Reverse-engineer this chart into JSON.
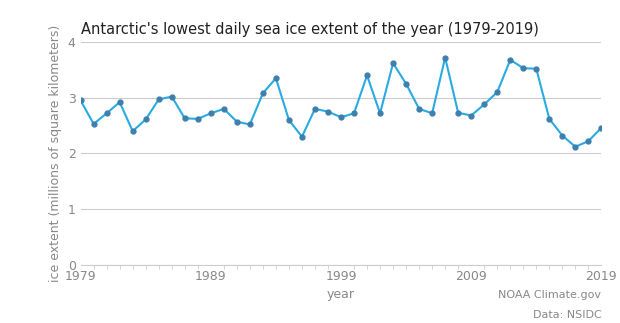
{
  "title": "Antarctic's lowest daily sea ice extent of the year (1979-2019)",
  "xlabel": "year",
  "ylabel": "ice extent (millions of square kilometers)",
  "years": [
    1979,
    1980,
    1981,
    1982,
    1983,
    1984,
    1985,
    1986,
    1987,
    1988,
    1989,
    1990,
    1991,
    1992,
    1993,
    1994,
    1995,
    1996,
    1997,
    1998,
    1999,
    2000,
    2001,
    2002,
    2003,
    2004,
    2005,
    2006,
    2007,
    2008,
    2009,
    2010,
    2011,
    2012,
    2013,
    2014,
    2015,
    2016,
    2017,
    2018,
    2019
  ],
  "values": [
    2.95,
    2.53,
    2.72,
    2.92,
    2.4,
    2.61,
    2.97,
    3.02,
    2.63,
    2.62,
    2.72,
    2.8,
    2.57,
    2.52,
    3.08,
    3.35,
    2.6,
    2.3,
    2.8,
    2.75,
    2.65,
    2.72,
    3.4,
    2.72,
    3.62,
    3.25,
    2.8,
    2.72,
    3.72,
    2.73,
    2.68,
    2.88,
    3.1,
    3.68,
    3.53,
    3.52,
    2.62,
    2.32,
    2.12,
    2.22,
    2.46
  ],
  "line_color": "#29ABE2",
  "marker_color": "#3d7fad",
  "marker_size": 3.5,
  "line_width": 1.5,
  "xlim": [
    1979,
    2019
  ],
  "ylim": [
    0,
    4
  ],
  "yticks": [
    0,
    1,
    2,
    3,
    4
  ],
  "xticks": [
    1979,
    1989,
    1999,
    2009,
    2019
  ],
  "grid_color": "#cccccc",
  "background_color": "#ffffff",
  "text_color": "#888888",
  "title_color": "#222222",
  "annotation1": "NOAA Climate.gov",
  "annotation2": "Data: NSIDC",
  "title_fontsize": 10.5,
  "axis_label_fontsize": 9,
  "tick_fontsize": 9,
  "annot_fontsize": 8
}
